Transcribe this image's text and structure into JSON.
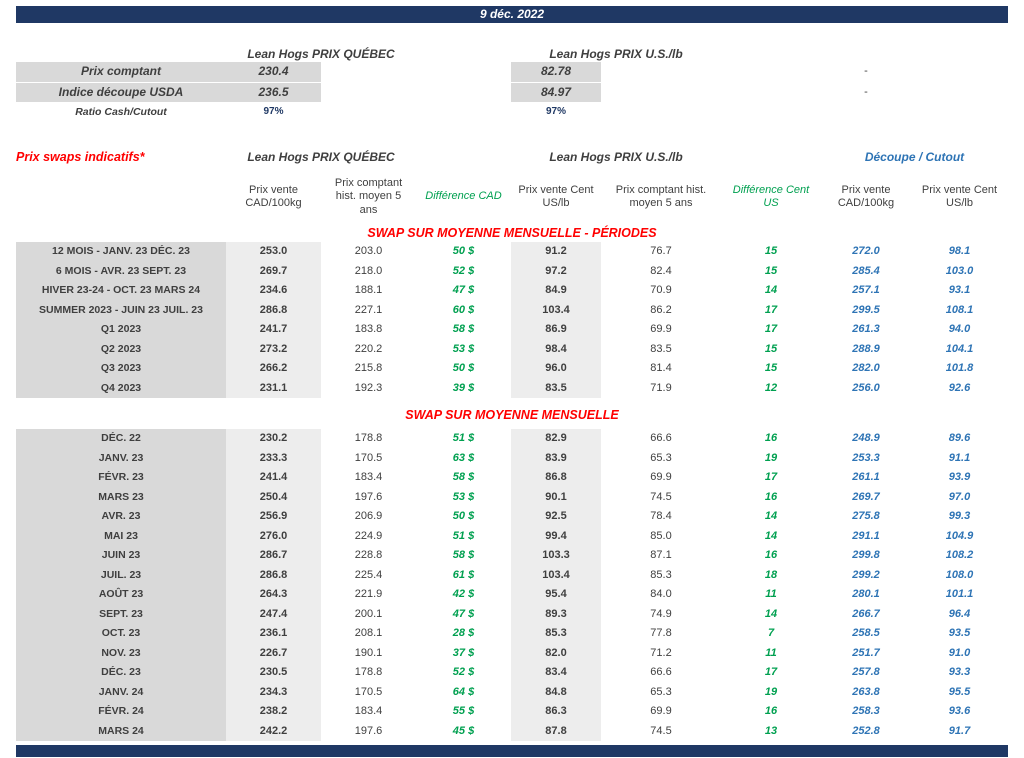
{
  "title_bar": {
    "date": "9 déc. 2022"
  },
  "colors": {
    "navy": "#1F3864",
    "red": "#FF0000",
    "green": "#00A050",
    "blue": "#2E74B5",
    "label_gray": "#D9D9D9",
    "shade_gray": "#EDEDED"
  },
  "top_summary": {
    "quebec_header": "Lean Hogs PRIX QUÉBEC",
    "us_header": "Lean Hogs PRIX U.S./lb",
    "rows": [
      {
        "label": "Prix comptant",
        "quebec": "230.4",
        "us": "82.78",
        "right": "-"
      },
      {
        "label": "Indice découpe USDA",
        "quebec": "236.5",
        "us": "84.97",
        "right": "-"
      },
      {
        "label": "Ratio Cash/Cutout",
        "quebec": "97%",
        "us": "97%",
        "right": ""
      }
    ]
  },
  "swaps": {
    "title": "Prix swaps indicatifs*",
    "quebec_group_header": "Lean Hogs PRIX QUÉBEC",
    "us_group_header": "Lean Hogs PRIX U.S./lb",
    "cutout_group_header": "Découpe / Cutout",
    "columns": [
      "Prix vente CAD/100kg",
      "Prix comptant hist. moyen 5 ans",
      "Différence CAD",
      "Prix vente Cent US/lb",
      "Prix comptant hist. moyen 5 ans",
      "Différence Cent US",
      "Prix vente CAD/100kg",
      "Prix vente Cent US/lb"
    ],
    "sections": [
      {
        "title": "SWAP SUR MOYENNE MENSUELLE - PÉRIODES",
        "rows": [
          [
            "12 MOIS - JANV. 23 DÉC. 23",
            "253.0",
            "203.0",
            "50 $",
            "91.2",
            "76.7",
            "15",
            "272.0",
            "98.1"
          ],
          [
            "6 MOIS - AVR. 23 SEPT. 23",
            "269.7",
            "218.0",
            "52 $",
            "97.2",
            "82.4",
            "15",
            "285.4",
            "103.0"
          ],
          [
            "HIVER 23-24 -  OCT. 23 MARS 24",
            "234.6",
            "188.1",
            "47 $",
            "84.9",
            "70.9",
            "14",
            "257.1",
            "93.1"
          ],
          [
            "SUMMER 2023 - JUIN 23 JUIL. 23",
            "286.8",
            "227.1",
            "60 $",
            "103.4",
            "86.2",
            "17",
            "299.5",
            "108.1"
          ],
          [
            "Q1 2023",
            "241.7",
            "183.8",
            "58 $",
            "86.9",
            "69.9",
            "17",
            "261.3",
            "94.0"
          ],
          [
            "Q2 2023",
            "273.2",
            "220.2",
            "53 $",
            "98.4",
            "83.5",
            "15",
            "288.9",
            "104.1"
          ],
          [
            "Q3 2023",
            "266.2",
            "215.8",
            "50 $",
            "96.0",
            "81.4",
            "15",
            "282.0",
            "101.8"
          ],
          [
            "Q4 2023",
            "231.1",
            "192.3",
            "39 $",
            "83.5",
            "71.9",
            "12",
            "256.0",
            "92.6"
          ]
        ]
      },
      {
        "title": "SWAP SUR MOYENNE MENSUELLE",
        "rows": [
          [
            "DÉC. 22",
            "230.2",
            "178.8",
            "51 $",
            "82.9",
            "66.6",
            "16",
            "248.9",
            "89.6"
          ],
          [
            "JANV. 23",
            "233.3",
            "170.5",
            "63 $",
            "83.9",
            "65.3",
            "19",
            "253.3",
            "91.1"
          ],
          [
            "FÉVR. 23",
            "241.4",
            "183.4",
            "58 $",
            "86.8",
            "69.9",
            "17",
            "261.1",
            "93.9"
          ],
          [
            "MARS 23",
            "250.4",
            "197.6",
            "53 $",
            "90.1",
            "74.5",
            "16",
            "269.7",
            "97.0"
          ],
          [
            "AVR. 23",
            "256.9",
            "206.9",
            "50 $",
            "92.5",
            "78.4",
            "14",
            "275.8",
            "99.3"
          ],
          [
            "MAI 23",
            "276.0",
            "224.9",
            "51 $",
            "99.4",
            "85.0",
            "14",
            "291.1",
            "104.9"
          ],
          [
            "JUIN 23",
            "286.7",
            "228.8",
            "58 $",
            "103.3",
            "87.1",
            "16",
            "299.8",
            "108.2"
          ],
          [
            "JUIL. 23",
            "286.8",
            "225.4",
            "61 $",
            "103.4",
            "85.3",
            "18",
            "299.2",
            "108.0"
          ],
          [
            "AOÛT 23",
            "264.3",
            "221.9",
            "42 $",
            "95.4",
            "84.0",
            "11",
            "280.1",
            "101.1"
          ],
          [
            "SEPT. 23",
            "247.4",
            "200.1",
            "47 $",
            "89.3",
            "74.9",
            "14",
            "266.7",
            "96.4"
          ],
          [
            "OCT. 23",
            "236.1",
            "208.1",
            "28 $",
            "85.3",
            "77.8",
            "7",
            "258.5",
            "93.5"
          ],
          [
            "NOV. 23",
            "226.7",
            "190.1",
            "37 $",
            "82.0",
            "71.2",
            "11",
            "251.7",
            "91.0"
          ],
          [
            "DÉC. 23",
            "230.5",
            "178.8",
            "52 $",
            "83.4",
            "66.6",
            "17",
            "257.8",
            "93.3"
          ],
          [
            "JANV. 24",
            "234.3",
            "170.5",
            "64 $",
            "84.8",
            "65.3",
            "19",
            "263.8",
            "95.5"
          ],
          [
            "FÉVR. 24",
            "238.2",
            "183.4",
            "55 $",
            "86.3",
            "69.9",
            "16",
            "258.3",
            "93.6"
          ],
          [
            "MARS 24",
            "242.2",
            "197.6",
            "45 $",
            "87.8",
            "74.5",
            "13",
            "252.8",
            "91.7"
          ]
        ]
      }
    ]
  }
}
